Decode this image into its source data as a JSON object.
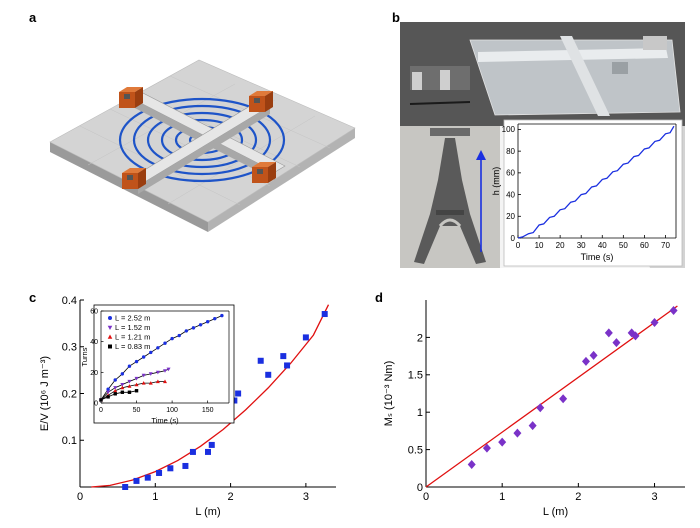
{
  "panels": {
    "a": "a",
    "b": "b",
    "c": "c",
    "d": "d"
  },
  "colors": {
    "axis": "#000000",
    "fit": "#e01010",
    "blue": "#1a2fe0",
    "purple": "#7a32c8",
    "red": "#e01010",
    "black": "#000000",
    "spiral": "#1e54c8",
    "magnet": "#d8661e",
    "photo_plot_line": "#1a2fe0"
  },
  "chart_data": [
    {
      "id": "inset-b",
      "type": "line",
      "xlabel": "Time (s)",
      "ylabel": "h (mm)",
      "xlim": [
        0,
        75
      ],
      "ylim": [
        0,
        105
      ],
      "xticks": [
        0,
        10,
        20,
        30,
        40,
        50,
        60,
        70
      ],
      "yticks": [
        0,
        20,
        40,
        60,
        80,
        100
      ],
      "series": [
        {
          "x": [
            0,
            5,
            10,
            15,
            20,
            25,
            30,
            35,
            40,
            45,
            50,
            55,
            60,
            65,
            70,
            74
          ],
          "y": [
            0,
            4,
            12,
            19,
            26,
            33,
            40,
            47,
            54,
            61,
            68,
            75,
            82,
            89,
            96,
            103
          ]
        }
      ]
    },
    {
      "id": "panel-c",
      "type": "scatter",
      "xlabel": "L (m)",
      "ylabel": "E/V (10⁶ J m⁻³)",
      "xlim": [
        0,
        3.4
      ],
      "ylim": [
        0,
        0.4
      ],
      "xticks": [
        0,
        1,
        2,
        3
      ],
      "yticks": [
        0.1,
        0.2,
        0.3,
        0.4
      ],
      "points": {
        "x": [
          0.6,
          0.75,
          0.9,
          1.05,
          1.2,
          1.4,
          1.5,
          1.7,
          1.75,
          2.05,
          2.1,
          2.4,
          2.5,
          2.7,
          2.75,
          3.0,
          3.25
        ],
        "y": [
          0.0,
          0.013,
          0.02,
          0.03,
          0.04,
          0.045,
          0.075,
          0.075,
          0.09,
          0.185,
          0.2,
          0.27,
          0.24,
          0.28,
          0.26,
          0.32,
          0.37
        ]
      },
      "fit": {
        "x": [
          0.15,
          0.4,
          0.7,
          1.0,
          1.3,
          1.6,
          1.9,
          2.2,
          2.5,
          2.8,
          3.1,
          3.3
        ],
        "y": [
          0.0,
          0.0035,
          0.015,
          0.033,
          0.057,
          0.087,
          0.123,
          0.165,
          0.212,
          0.265,
          0.325,
          0.39
        ]
      }
    },
    {
      "id": "inset-c",
      "type": "line",
      "xlabel": "Time (s)",
      "ylabel": "Turns",
      "xlim": [
        0,
        180
      ],
      "ylim": [
        0,
        60
      ],
      "xticks": [
        0,
        50,
        100,
        150
      ],
      "yticks": [
        0,
        20,
        40,
        60
      ],
      "legend": [
        "L = 2.52 m",
        "L = 1.52 m",
        "L = 1.21 m",
        "L = 0.83 m"
      ],
      "series": [
        {
          "name": "L = 2.52 m",
          "x": [
            0,
            10,
            20,
            30,
            40,
            50,
            60,
            70,
            80,
            90,
            100,
            110,
            120,
            130,
            140,
            150,
            160,
            170
          ],
          "y": [
            2,
            9,
            15,
            19,
            24,
            27,
            30,
            33,
            36,
            39,
            42,
            44,
            47,
            49,
            51,
            53,
            55,
            57
          ]
        },
        {
          "name": "L = 1.52 m",
          "x": [
            0,
            10,
            20,
            30,
            40,
            50,
            60,
            70,
            80,
            90,
            95
          ],
          "y": [
            2,
            7,
            10,
            12,
            14,
            16,
            18,
            19,
            20,
            21,
            22
          ]
        },
        {
          "name": "L = 1.21 m",
          "x": [
            0,
            10,
            20,
            30,
            40,
            50,
            60,
            70,
            80,
            90
          ],
          "y": [
            2,
            5,
            8,
            10,
            11,
            12,
            13,
            13,
            14,
            14
          ]
        },
        {
          "name": "L = 0.83 m",
          "x": [
            0,
            10,
            20,
            30,
            40,
            50
          ],
          "y": [
            2,
            4,
            6,
            7,
            7,
            8
          ]
        }
      ]
    },
    {
      "id": "panel-d",
      "type": "scatter",
      "xlabel": "L (m)",
      "ylabel": "Mₛ (10⁻³ Nm)",
      "xlim": [
        0,
        3.4
      ],
      "ylim": [
        0,
        2.5
      ],
      "xticks": [
        0,
        1,
        2,
        3
      ],
      "yticks": [
        0,
        0.5,
        1,
        1.5,
        2
      ],
      "points": {
        "x": [
          0.6,
          0.8,
          1.0,
          1.2,
          1.4,
          1.5,
          1.8,
          2.1,
          2.2,
          2.4,
          2.5,
          2.7,
          2.75,
          3.0,
          3.25
        ],
        "y": [
          0.3,
          0.52,
          0.6,
          0.72,
          0.82,
          1.06,
          1.18,
          1.68,
          1.76,
          2.06,
          1.93,
          2.06,
          2.02,
          2.2,
          2.36
        ]
      },
      "fit": {
        "x": [
          0,
          3.3
        ],
        "y": [
          0,
          2.42
        ]
      }
    }
  ]
}
